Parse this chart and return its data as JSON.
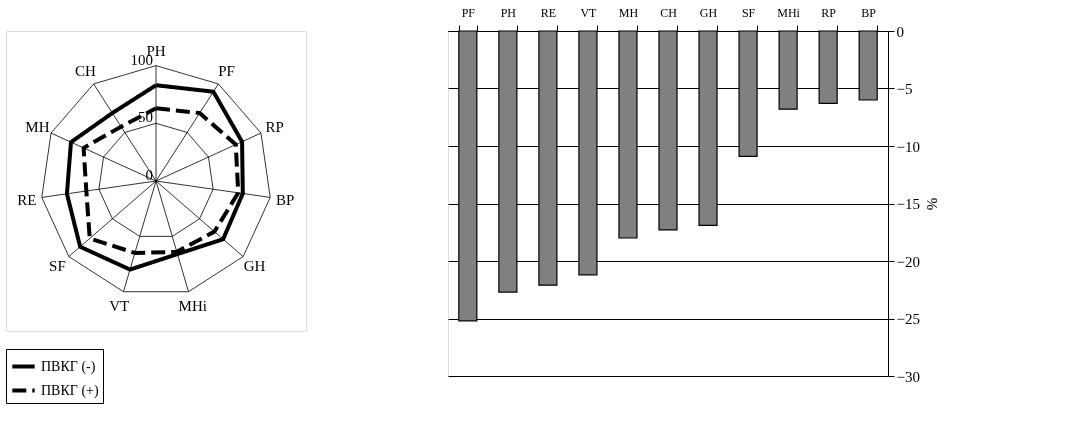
{
  "chart_data": [
    {
      "type": "radar",
      "categories": [
        "PH",
        "PF",
        "RP",
        "BP",
        "GH",
        "MHi",
        "VT",
        "SF",
        "RE",
        "MH",
        "CH"
      ],
      "ylim": [
        0,
        100
      ],
      "yticks": [
        0,
        50,
        100
      ],
      "legend": "bottom",
      "series": [
        {
          "name": "ПВКГ (-)",
          "color": "#000000",
          "line_style": "solid",
          "values": [
            83,
            92,
            82,
            76,
            77,
            66,
            80,
            87,
            78,
            81,
            70
          ]
        },
        {
          "name": "ПВКГ (+)",
          "color": "#000000",
          "line_style": "dashed",
          "values": [
            63,
            70,
            76,
            72,
            67,
            64,
            65,
            76,
            61,
            69,
            56
          ]
        }
      ]
    },
    {
      "type": "bar",
      "categories": [
        "PF",
        "PH",
        "RE",
        "VT",
        "MH",
        "CH",
        "GH",
        "SF",
        "MHi",
        "RP",
        "BP"
      ],
      "values": [
        -25.2,
        -22.7,
        -22.1,
        -21.2,
        -18.0,
        -17.3,
        -16.9,
        -10.9,
        -6.8,
        -6.3,
        -6.0
      ],
      "color": "#808080",
      "y2label": "%",
      "ylim": [
        -30,
        0
      ],
      "yticks": [
        -30,
        -25,
        -20,
        -15,
        -10,
        -5,
        0
      ],
      "grid": "y"
    }
  ]
}
